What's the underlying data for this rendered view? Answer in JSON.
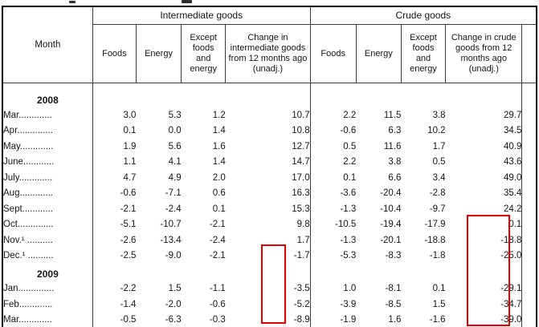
{
  "colors": {
    "highlight": "#e60000",
    "line": "#3a3a3a",
    "frame": "#000000",
    "text": "#151515",
    "background": "#ffffff"
  },
  "table": {
    "month_header": "Month",
    "groups": [
      {
        "label": "Intermediate goods",
        "columns": [
          "Foods",
          "Energy",
          "Except foods and energy",
          "Change in intermediate goods from 12 months ago (unadj.)"
        ]
      },
      {
        "label": "Crude goods",
        "columns": [
          "Foods",
          "Energy",
          "Except foods and energy",
          "Change in crude goods from 12 months ago (unadj.)"
        ]
      }
    ],
    "rows": [
      {
        "type": "year",
        "label": "2008"
      },
      {
        "type": "month",
        "label": "Mar.............",
        "values": [
          "3.0",
          "5.3",
          "1.2",
          "10.7",
          "2.2",
          "11.5",
          "3.8",
          "29.7"
        ]
      },
      {
        "type": "month",
        "label": "Apr..............",
        "values": [
          "0.1",
          "0.0",
          "1.4",
          "10.8",
          "-0.6",
          "6.3",
          "10.2",
          "34.5"
        ]
      },
      {
        "type": "month",
        "label": "May.............",
        "values": [
          "1.9",
          "5.6",
          "1.6",
          "12.7",
          "0.5",
          "11.6",
          "1.7",
          "40.9"
        ]
      },
      {
        "type": "month",
        "label": "June............",
        "values": [
          "1.1",
          "4.1",
          "1.4",
          "14.7",
          "2.2",
          "3.8",
          "0.5",
          "43.6"
        ]
      },
      {
        "type": "month",
        "label": "July.............",
        "values": [
          "4.7",
          "4.9",
          "2.0",
          "17.0",
          "0.1",
          "6.6",
          "3.4",
          "49.0"
        ]
      },
      {
        "type": "month",
        "label": "Aug.............",
        "values": [
          "-0.6",
          "-7.1",
          "0.6",
          "16.3",
          "-3.6",
          "-20.4",
          "-2.8",
          "35.4"
        ]
      },
      {
        "type": "month",
        "label": "Sept............",
        "values": [
          "-2.1",
          "-2.4",
          "0.1",
          "15.3",
          "-1.3",
          "-10.4",
          "-9.7",
          "24.2"
        ]
      },
      {
        "type": "month",
        "label": "Oct..............",
        "values": [
          "-5.1",
          "-10.7",
          "-2.1",
          "9.8",
          "-10.5",
          "-19.4",
          "-17.9",
          "0.1"
        ]
      },
      {
        "type": "month",
        "label": "Nov.¹ ..........",
        "values": [
          "-2.6",
          "-13.4",
          "-2.4",
          "1.7",
          "-1.3",
          "-20.1",
          "-18.8",
          "-18.8"
        ]
      },
      {
        "type": "month",
        "label": "Dec.¹ ..........",
        "values": [
          "-2.5",
          "-9.0",
          "-2.1",
          "-1.7",
          "-5.3",
          "-8.3",
          "-1.8",
          "-25.0"
        ]
      },
      {
        "type": "year",
        "label": "2009"
      },
      {
        "type": "month",
        "label": "Jan..............",
        "values": [
          "-2.2",
          "1.5",
          "-1.1",
          "-3.5",
          "1.0",
          "-8.1",
          "0.1",
          "-29.1"
        ]
      },
      {
        "type": "month",
        "label": "Feb.............",
        "values": [
          "-1.4",
          "-2.0",
          "-0.6",
          "-5.2",
          "-3.9",
          "-8.5",
          "1.5",
          "-34.7"
        ]
      },
      {
        "type": "month",
        "label": "Mar.............",
        "values": [
          "-0.5",
          "-6.3",
          "-0.3",
          "-8.9",
          "-1.9",
          "1.6",
          "-1.6",
          "-39.0"
        ]
      }
    ],
    "highlights": [
      {
        "region": "intermediate-change-column",
        "values": [
          "-1.7",
          "-3.5",
          "-5.2",
          "-8.9"
        ]
      },
      {
        "region": "crude-change-column",
        "values": [
          "0.1",
          "-18.8",
          "-25.0",
          "-29.1",
          "-34.7",
          "-39.0"
        ]
      }
    ]
  }
}
